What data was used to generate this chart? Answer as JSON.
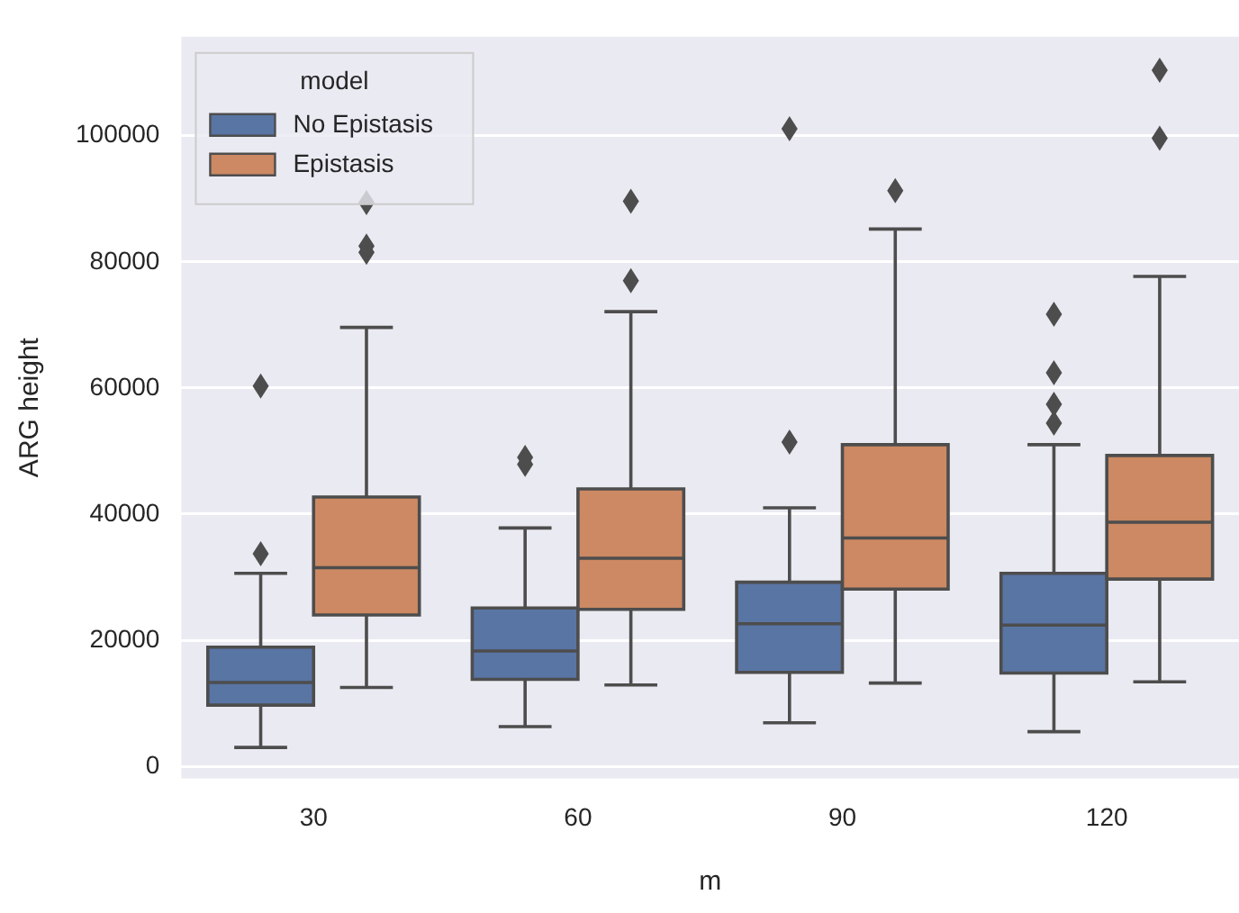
{
  "chart_data": {
    "type": "box",
    "xlabel": "m",
    "ylabel": "ARG height",
    "legend_title": "model",
    "legend": "top left",
    "grid": "y",
    "marker": "diamond",
    "categories": [
      "30",
      "60",
      "90",
      "120"
    ],
    "ylim": [
      -1900,
      115700
    ],
    "yticks": [
      0,
      20000,
      40000,
      60000,
      80000,
      100000
    ],
    "series": [
      {
        "name": "No Epistasis",
        "color": "#5975a4",
        "boxes": [
          {
            "low": 3000,
            "q1": 9700,
            "median": 13300,
            "q3": 18900,
            "high": 30600,
            "outliers": [
              33700,
              60300
            ]
          },
          {
            "low": 6300,
            "q1": 13800,
            "median": 18300,
            "q3": 25100,
            "high": 37800,
            "outliers": [
              47900,
              49000
            ]
          },
          {
            "low": 6900,
            "q1": 14900,
            "median": 22600,
            "q3": 29200,
            "high": 41000,
            "outliers": [
              51400,
              101100
            ]
          },
          {
            "low": 5500,
            "q1": 14800,
            "median": 22400,
            "q3": 30600,
            "high": 51000,
            "outliers": [
              54400,
              57400,
              62400,
              71700
            ]
          }
        ]
      },
      {
        "name": "Epistasis",
        "color": "#cc8963",
        "boxes": [
          {
            "low": 12500,
            "q1": 24000,
            "median": 31500,
            "q3": 42700,
            "high": 69600,
            "outliers": [
              81500,
              82500,
              89400
            ]
          },
          {
            "low": 12900,
            "q1": 24900,
            "median": 33000,
            "q3": 44000,
            "high": 72100,
            "outliers": [
              77000,
              89600
            ]
          },
          {
            "low": 13200,
            "q1": 28100,
            "median": 36200,
            "q3": 51000,
            "high": 85200,
            "outliers": [
              91300
            ]
          },
          {
            "low": 13400,
            "q1": 29700,
            "median": 38700,
            "q3": 49300,
            "high": 77700,
            "outliers": [
              99600,
              110400
            ]
          }
        ]
      }
    ]
  }
}
